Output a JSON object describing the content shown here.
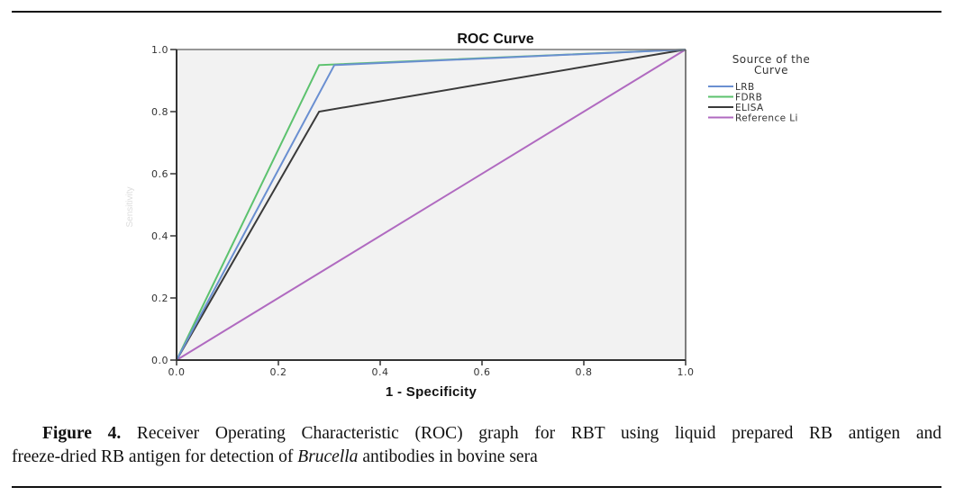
{
  "chart_data": {
    "type": "line",
    "title": "ROC Curve",
    "xlabel": "1 - Specificity",
    "ylabel": "Sensitivity",
    "xlim": [
      0,
      1
    ],
    "ylim": [
      0,
      1
    ],
    "grid": false,
    "xticks": [
      "0.0",
      "0.2",
      "0.4",
      "0.6",
      "0.8",
      "1.0"
    ],
    "yticks": [
      "0.0",
      "0.2",
      "0.4",
      "0.6",
      "0.8",
      "1.0"
    ],
    "xtick_values": [
      0,
      0.2,
      0.4,
      0.6,
      0.8,
      1.0
    ],
    "ytick_values": [
      0,
      0.2,
      0.4,
      0.6,
      0.8,
      1.0
    ],
    "legend": {
      "title": [
        "Source of the",
        "Curve"
      ],
      "placement": "right"
    },
    "series": [
      {
        "name": "LRB",
        "color": "#6a8fd1",
        "x": [
          0,
          0.31,
          1.0
        ],
        "y": [
          0,
          0.95,
          1.0
        ]
      },
      {
        "name": "FDRB",
        "color": "#5cc26e",
        "x": [
          0,
          0.28,
          1.0
        ],
        "y": [
          0,
          0.95,
          1.0
        ]
      },
      {
        "name": "ELISA",
        "color": "#3a3a3a",
        "x": [
          0,
          0.28,
          1.0
        ],
        "y": [
          0,
          0.8,
          1.0
        ]
      },
      {
        "name": "Reference Li",
        "color": "#b06ac0",
        "x": [
          0,
          1.0
        ],
        "y": [
          0,
          1.0
        ]
      }
    ],
    "background": "#f2f2f2"
  },
  "caption": {
    "label": "Figure 4.",
    "text_line1": "Receiver Operating Characteristic (ROC) graph for RBT using liquid prepared RB antigen and",
    "text_line2_pre": "freeze-dried RB antigen for detection of ",
    "text_italic": "Brucella",
    "text_line2_post": " antibodies in bovine sera"
  }
}
